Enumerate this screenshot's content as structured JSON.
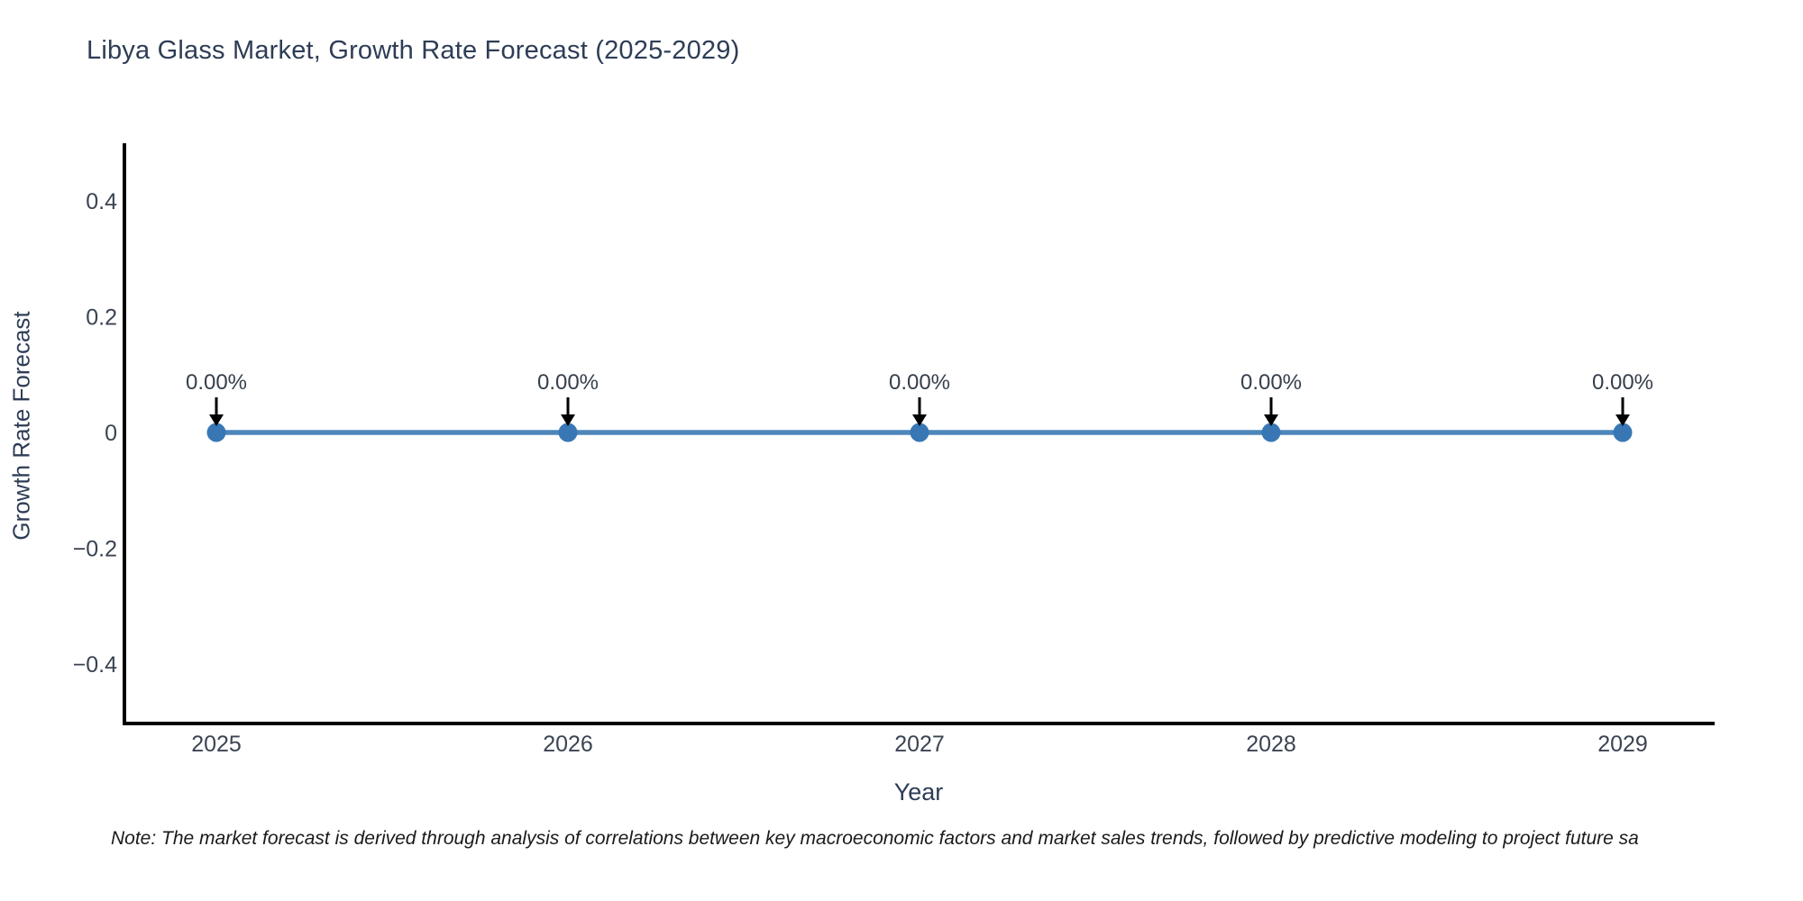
{
  "header": {
    "title": "Libya Glass Market, Growth Rate Forecast (2025-2029)"
  },
  "footer": {
    "note": "Note: The market forecast is derived through analysis of correlations between key macroeconomic factors and market sales trends, followed by predictive modeling to project future sa"
  },
  "chart_data": {
    "type": "line",
    "title": "Libya Glass Market, Growth Rate Forecast (2025-2029)",
    "xlabel": "Year",
    "ylabel": "Growth Rate Forecast",
    "x": [
      2025,
      2026,
      2027,
      2028,
      2029
    ],
    "xticks": [
      "2025",
      "2026",
      "2027",
      "2028",
      "2029"
    ],
    "series": [
      {
        "name": "Growth Rate Forecast",
        "values": [
          0,
          0,
          0,
          0,
          0
        ]
      }
    ],
    "point_labels": [
      "0.00%",
      "0.00%",
      "0.00%",
      "0.00%",
      "0.00%"
    ],
    "ylim": [
      -0.5,
      0.5
    ],
    "yticks": [
      {
        "value": 0.4,
        "label": "0.4"
      },
      {
        "value": 0.2,
        "label": "0.2"
      },
      {
        "value": 0,
        "label": "0"
      },
      {
        "value": -0.2,
        "label": "−0.2"
      },
      {
        "value": -0.4,
        "label": "−0.4"
      }
    ],
    "grid": false,
    "legend": "none",
    "colors": {
      "line": "#4e86ba",
      "marker": "#3877b4",
      "axis": "#000000",
      "tick_label": "#3b4452",
      "annotation_text": "#363f4c",
      "arrow": "#000000",
      "title": "#2e3d56"
    }
  }
}
